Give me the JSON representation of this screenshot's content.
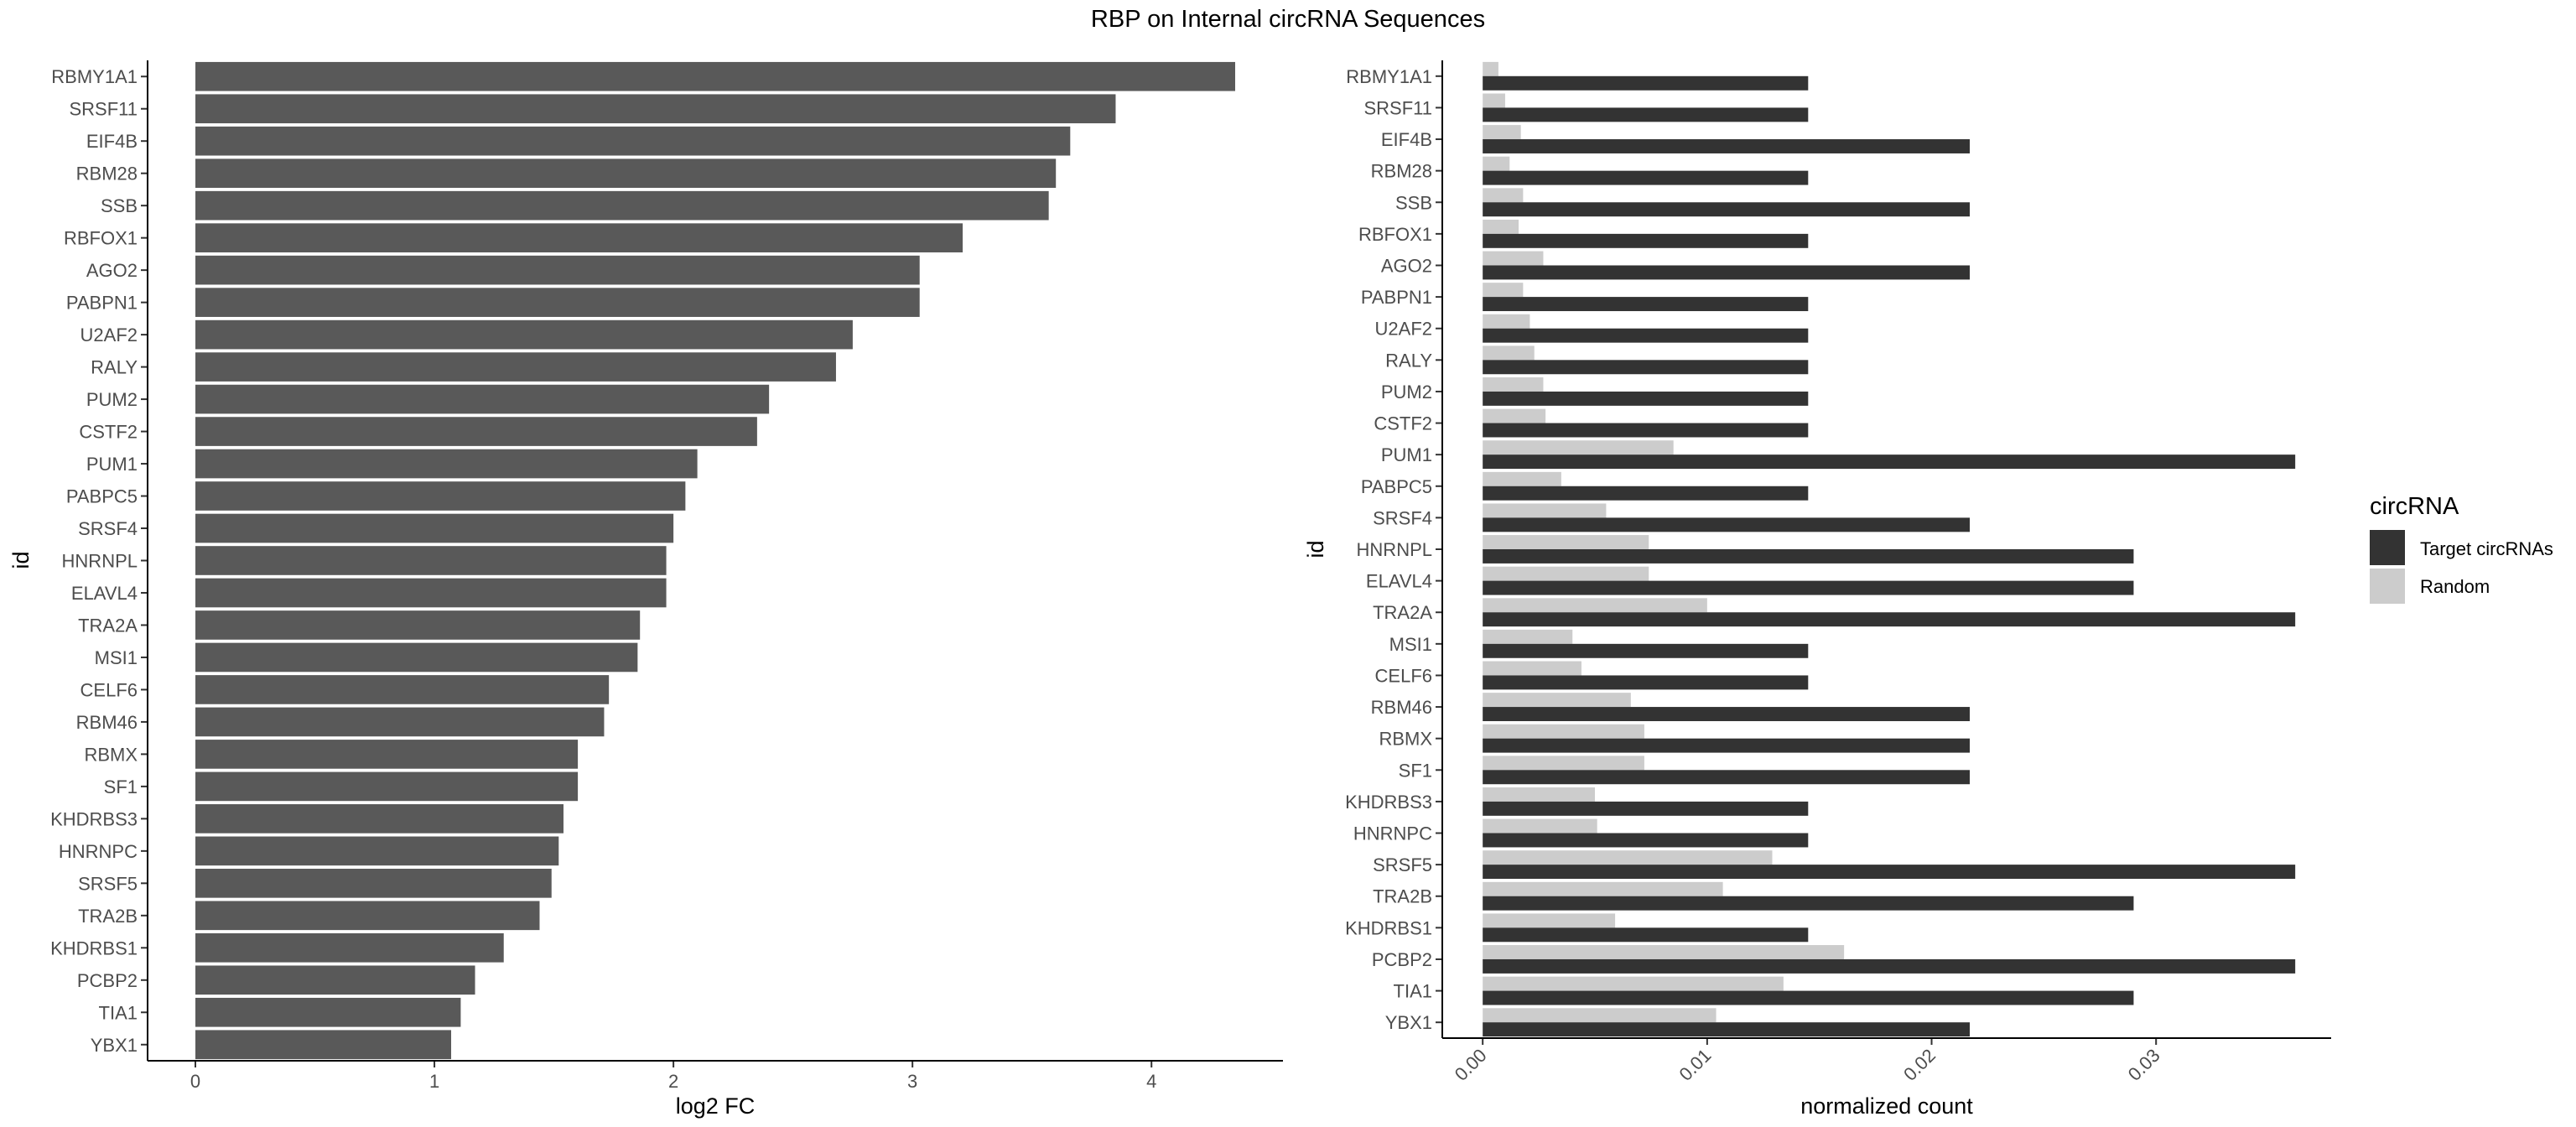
{
  "figure": {
    "title": "RBP on Internal circRNA Sequences"
  },
  "chart_data": [
    {
      "type": "bar",
      "orientation": "horizontal",
      "xlabel": "log2 FC",
      "ylabel": "id",
      "xlim": [
        -0.2,
        4.55
      ],
      "xticks": [
        0,
        1,
        2,
        3,
        4
      ],
      "categories": [
        "RBMY1A1",
        "SRSF11",
        "EIF4B",
        "RBM28",
        "SSB",
        "RBFOX1",
        "AGO2",
        "PABPN1",
        "U2AF2",
        "RALY",
        "PUM2",
        "CSTF2",
        "PUM1",
        "PABPC5",
        "SRSF4",
        "HNRNPL",
        "ELAVL4",
        "TRA2A",
        "MSI1",
        "CELF6",
        "RBM46",
        "RBMX",
        "SF1",
        "KHDRBS3",
        "HNRNPC",
        "SRSF5",
        "TRA2B",
        "KHDRBS1",
        "PCBP2",
        "TIA1",
        "YBX1"
      ],
      "values": [
        4.35,
        3.85,
        3.66,
        3.6,
        3.57,
        3.21,
        3.03,
        3.03,
        2.75,
        2.68,
        2.4,
        2.35,
        2.1,
        2.05,
        2.0,
        1.97,
        1.97,
        1.86,
        1.85,
        1.73,
        1.71,
        1.6,
        1.6,
        1.54,
        1.52,
        1.49,
        1.44,
        1.29,
        1.17,
        1.11,
        1.07
      ],
      "bar_color": "#595959",
      "grid": false
    },
    {
      "type": "bar",
      "orientation": "horizontal",
      "grouped": true,
      "xlabel": "normalized count",
      "ylabel": "id",
      "xlim": [
        -0.0018,
        0.0378
      ],
      "xticks": [
        0.0,
        0.01,
        0.02,
        0.03
      ],
      "xtick_labels": [
        "0.00",
        "0.01",
        "0.02",
        "0.03"
      ],
      "categories": [
        "RBMY1A1",
        "SRSF11",
        "EIF4B",
        "RBM28",
        "SSB",
        "RBFOX1",
        "AGO2",
        "PABPN1",
        "U2AF2",
        "RALY",
        "PUM2",
        "CSTF2",
        "PUM1",
        "PABPC5",
        "SRSF4",
        "HNRNPL",
        "ELAVL4",
        "TRA2A",
        "MSI1",
        "CELF6",
        "RBM46",
        "RBMX",
        "SF1",
        "KHDRBS3",
        "HNRNPC",
        "SRSF5",
        "TRA2B",
        "KHDRBS1",
        "PCBP2",
        "TIA1",
        "YBX1"
      ],
      "series": [
        {
          "name": "Target circRNAs",
          "color": "#333333",
          "values": [
            0.0145,
            0.0145,
            0.0217,
            0.0145,
            0.0217,
            0.0145,
            0.0217,
            0.0145,
            0.0145,
            0.0145,
            0.0145,
            0.0145,
            0.0362,
            0.0145,
            0.0217,
            0.029,
            0.029,
            0.0362,
            0.0145,
            0.0145,
            0.0217,
            0.0217,
            0.0217,
            0.0145,
            0.0145,
            0.0362,
            0.029,
            0.0145,
            0.0362,
            0.029,
            0.0217
          ]
        },
        {
          "name": "Random",
          "color": "#cccccc",
          "values": [
            0.0007,
            0.001,
            0.0017,
            0.0012,
            0.0018,
            0.0016,
            0.0027,
            0.0018,
            0.0021,
            0.0023,
            0.0027,
            0.0028,
            0.0085,
            0.0035,
            0.0055,
            0.0074,
            0.0074,
            0.01,
            0.004,
            0.0044,
            0.0066,
            0.0072,
            0.0072,
            0.005,
            0.0051,
            0.0129,
            0.0107,
            0.0059,
            0.0161,
            0.0134,
            0.0104
          ]
        }
      ],
      "legend": {
        "title": "circRNA",
        "position": "right"
      },
      "grid": false
    }
  ]
}
